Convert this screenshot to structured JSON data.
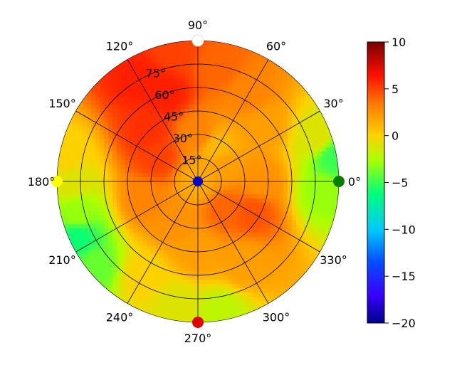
{
  "chart_data": {
    "type": "heatmap",
    "projection": "polar",
    "title": "",
    "angle_tick_labels": [
      "0°",
      "30°",
      "60°",
      "90°",
      "120°",
      "150°",
      "180°",
      "210°",
      "240°",
      "270°",
      "300°",
      "330°"
    ],
    "angle_ticks_deg": [
      0,
      30,
      60,
      90,
      120,
      150,
      180,
      210,
      240,
      270,
      300,
      330
    ],
    "radial_tick_labels": [
      "15°",
      "30°",
      "45°",
      "60°",
      "75°"
    ],
    "radial_ticks": [
      15,
      30,
      45,
      60,
      75
    ],
    "radial_range": [
      0,
      90
    ],
    "radial_label_angle_deg": 112.5,
    "colorscale": "jet-like",
    "colorbar": {
      "range": [
        -20,
        10
      ],
      "ticks": [
        10,
        5,
        0,
        -5,
        -10,
        -15,
        -20
      ],
      "tick_labels": [
        "10",
        "5",
        "0",
        "−5",
        "−10",
        "−15",
        "−20"
      ]
    },
    "grid": true,
    "field_samples": {
      "note_units": "theta in degrees, r in radial units, value in colorbar units",
      "points": [
        {
          "theta": 0,
          "r": 0,
          "value": 1.5
        },
        {
          "theta": 120,
          "r": 75,
          "value": 6
        },
        {
          "theta": 110,
          "r": 60,
          "value": 6
        },
        {
          "theta": 135,
          "r": 45,
          "value": 5.5
        },
        {
          "theta": 150,
          "r": 30,
          "value": 5
        },
        {
          "theta": 100,
          "r": 85,
          "value": 5
        },
        {
          "theta": 80,
          "r": 75,
          "value": 4
        },
        {
          "theta": 60,
          "r": 65,
          "value": 3
        },
        {
          "theta": 40,
          "r": 55,
          "value": 2
        },
        {
          "theta": 20,
          "r": 80,
          "value": -1
        },
        {
          "theta": 10,
          "r": 88,
          "value": -5
        },
        {
          "theta": 355,
          "r": 80,
          "value": -3
        },
        {
          "theta": 330,
          "r": 40,
          "value": 4.5
        },
        {
          "theta": 315,
          "r": 25,
          "value": 4
        },
        {
          "theta": 300,
          "r": 60,
          "value": 2
        },
        {
          "theta": 280,
          "r": 85,
          "value": -2
        },
        {
          "theta": 260,
          "r": 80,
          "value": -1
        },
        {
          "theta": 240,
          "r": 70,
          "value": 0
        },
        {
          "theta": 220,
          "r": 85,
          "value": -4
        },
        {
          "theta": 205,
          "r": 85,
          "value": -6
        },
        {
          "theta": 195,
          "r": 80,
          "value": -3
        },
        {
          "theta": 180,
          "r": 80,
          "value": -1
        },
        {
          "theta": 170,
          "r": 85,
          "value": 0
        },
        {
          "theta": 200,
          "r": 35,
          "value": 3
        },
        {
          "theta": 240,
          "r": 30,
          "value": 2.5
        },
        {
          "theta": 60,
          "r": 25,
          "value": 1
        },
        {
          "theta": 30,
          "r": 20,
          "value": 2
        },
        {
          "theta": 90,
          "r": 30,
          "value": 3
        },
        {
          "theta": 0,
          "r": 40,
          "value": 2.5
        },
        {
          "theta": 270,
          "r": 45,
          "value": 2
        }
      ]
    },
    "markers": [
      {
        "theta": 90,
        "r": 90,
        "color": "#ffffff",
        "label": "90°"
      },
      {
        "theta": 180,
        "r": 90,
        "color": "#ffff00",
        "label": "180°"
      },
      {
        "theta": 0,
        "r": 90,
        "color": "#0a7d00",
        "label": "0°"
      },
      {
        "theta": 270,
        "r": 90,
        "color": "#e00000",
        "label": "270°"
      },
      {
        "theta": 0,
        "r": 0,
        "color": "#0000c8",
        "label": "center"
      }
    ]
  }
}
